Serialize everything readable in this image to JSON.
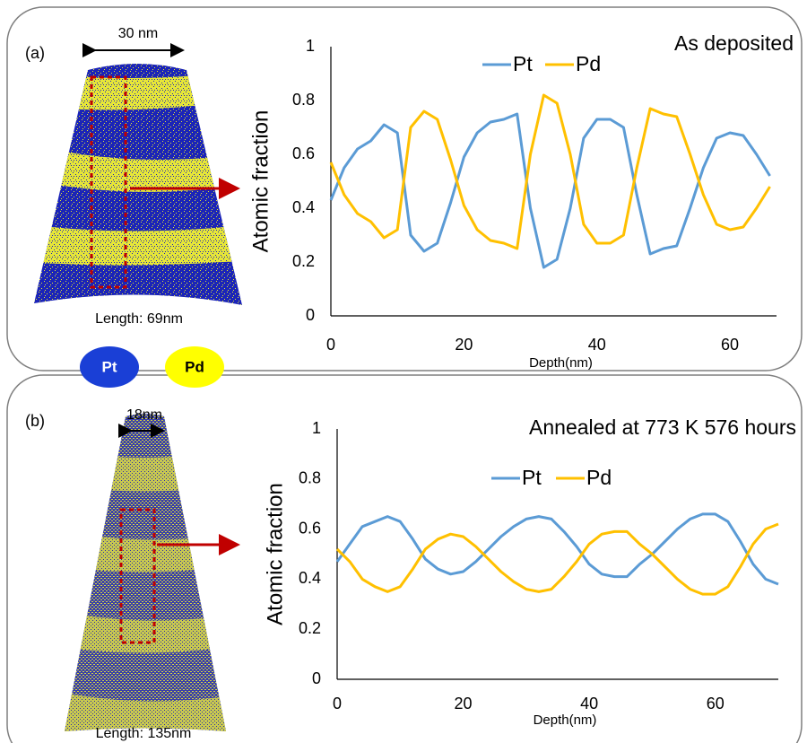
{
  "panels": [
    {
      "label": "(a)",
      "scale_label": "30 nm",
      "length_label": "Length: 69nm"
    },
    {
      "label": "(b)",
      "scale_label": "18nm",
      "length_label": "Length: 135nm"
    }
  ],
  "element_legend": [
    "Pt",
    "Pd"
  ],
  "chart_data": [
    {
      "type": "line",
      "title": "As deposited",
      "x_label": "Depth(nm)",
      "y_label": "Atomic fraction",
      "x": [
        0,
        2,
        4,
        6,
        8,
        10,
        12,
        14,
        16,
        18,
        20,
        22,
        24,
        26,
        28,
        30,
        32,
        34,
        36,
        38,
        40,
        42,
        44,
        46,
        48,
        50,
        52,
        54,
        56,
        58,
        60,
        62,
        64,
        66
      ],
      "series": [
        {
          "name": "Pt",
          "color": "#5b9bd5",
          "values": [
            0.43,
            0.55,
            0.62,
            0.65,
            0.71,
            0.68,
            0.3,
            0.24,
            0.27,
            0.42,
            0.59,
            0.68,
            0.72,
            0.73,
            0.75,
            0.4,
            0.18,
            0.21,
            0.4,
            0.66,
            0.73,
            0.73,
            0.7,
            0.45,
            0.23,
            0.25,
            0.26,
            0.4,
            0.55,
            0.66,
            0.68,
            0.67,
            0.6,
            0.52
          ]
        },
        {
          "name": "Pd",
          "color": "#ffc000",
          "values": [
            0.57,
            0.45,
            0.38,
            0.35,
            0.29,
            0.32,
            0.7,
            0.76,
            0.73,
            0.58,
            0.41,
            0.32,
            0.28,
            0.27,
            0.25,
            0.6,
            0.82,
            0.79,
            0.6,
            0.34,
            0.27,
            0.27,
            0.3,
            0.55,
            0.77,
            0.75,
            0.74,
            0.6,
            0.45,
            0.34,
            0.32,
            0.33,
            0.4,
            0.48
          ]
        }
      ],
      "xlim": [
        0,
        67
      ],
      "xticks": [
        0,
        20,
        40,
        60
      ],
      "ylim": [
        0,
        1
      ],
      "yticks": [
        0,
        0.2,
        0.4,
        0.6,
        0.8,
        1
      ],
      "grid": false
    },
    {
      "type": "line",
      "title": "Annealed at 773 K 576 hours",
      "x_label": "Depth(nm)",
      "y_label": "Atomic fraction",
      "x": [
        0,
        2,
        4,
        6,
        8,
        10,
        12,
        14,
        16,
        18,
        20,
        22,
        24,
        26,
        28,
        30,
        32,
        34,
        36,
        38,
        40,
        42,
        44,
        46,
        48,
        50,
        52,
        54,
        56,
        58,
        60,
        62,
        64,
        66,
        68,
        70
      ],
      "series": [
        {
          "name": "Pt",
          "color": "#5b9bd5",
          "values": [
            0.47,
            0.54,
            0.61,
            0.63,
            0.65,
            0.63,
            0.56,
            0.48,
            0.44,
            0.42,
            0.43,
            0.47,
            0.52,
            0.57,
            0.61,
            0.64,
            0.65,
            0.64,
            0.59,
            0.53,
            0.46,
            0.42,
            0.41,
            0.41,
            0.46,
            0.5,
            0.55,
            0.6,
            0.64,
            0.66,
            0.66,
            0.63,
            0.55,
            0.46,
            0.4,
            0.38
          ]
        },
        {
          "name": "Pd",
          "color": "#ffc000",
          "values": [
            0.52,
            0.47,
            0.4,
            0.37,
            0.35,
            0.37,
            0.44,
            0.52,
            0.56,
            0.58,
            0.57,
            0.53,
            0.48,
            0.43,
            0.39,
            0.36,
            0.35,
            0.36,
            0.41,
            0.47,
            0.54,
            0.58,
            0.59,
            0.59,
            0.54,
            0.5,
            0.45,
            0.4,
            0.36,
            0.34,
            0.34,
            0.37,
            0.45,
            0.54,
            0.6,
            0.62
          ]
        }
      ],
      "xlim": [
        0,
        70
      ],
      "xticks": [
        0,
        20,
        40,
        60
      ],
      "ylim": [
        0,
        1
      ],
      "yticks": [
        0,
        0.2,
        0.4,
        0.6,
        0.8,
        1
      ],
      "grid": false
    }
  ]
}
